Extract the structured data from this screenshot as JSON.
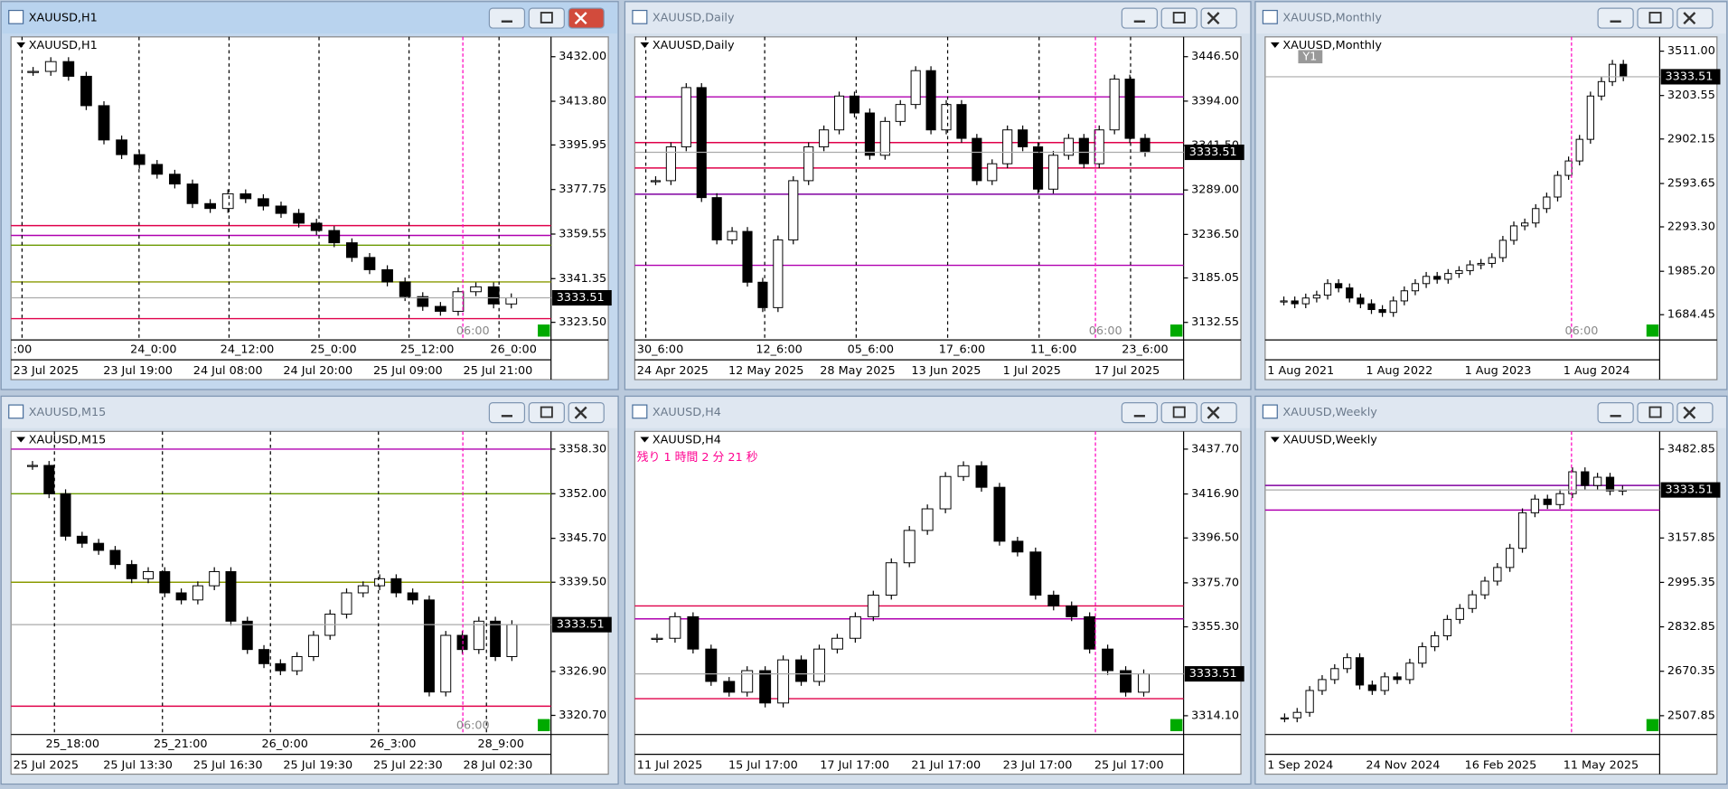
{
  "windows": [
    {
      "title": "XAUUSD,H1",
      "label": "XAUUSD,H1",
      "ylim": [
        3316.3,
        3440.1
      ],
      "yticks": [
        {
          "value": 3432,
          "label": "3432.00"
        },
        {
          "value": 3413.8,
          "label": "3413.80"
        },
        {
          "value": 3395.95,
          "label": "3395.95"
        },
        {
          "value": 3377.75,
          "label": "3377.75"
        },
        {
          "value": 3359.55,
          "label": "3359.55"
        },
        {
          "value": 3341.35,
          "label": "3341.35"
        },
        {
          "value": 3323.5,
          "label": "3323.50"
        }
      ],
      "price": 3333.51,
      "top_labels": [
        ":00",
        "24_0:00",
        "24_12:00",
        "25_0:00",
        "25_12:00",
        "26_0:00"
      ],
      "dates": [
        "23 Jul 2025",
        "23 Jul 19:00",
        "24 Jul 08:00",
        "24 Jul 20:00",
        "25 Jul 09:00",
        "25 Jul 21:00"
      ],
      "ghost": "06:00",
      "closes": [
        3426,
        3430,
        3424,
        3412,
        3398,
        3392,
        3388,
        3384,
        3380,
        3372,
        3370,
        3376,
        3374,
        3371,
        3368,
        3364,
        3361,
        3356,
        3350,
        3345,
        3340,
        3334,
        3330,
        3328,
        3336,
        3338,
        3331,
        3333.51
      ],
      "levels": [
        {
          "value": 3363,
          "color": "#e0004a"
        },
        {
          "value": 3359,
          "color": "#b000b0"
        },
        {
          "value": 3355,
          "color": "#6a9a00"
        },
        {
          "value": 3340,
          "color": "#8a9a00"
        },
        {
          "value": 3325,
          "color": "#e0004a"
        }
      ]
    },
    {
      "title": "XAUUSD,Daily",
      "label": "XAUUSD,Daily",
      "ylim": [
        3111.8,
        3469.9
      ],
      "yticks": [
        {
          "value": 3446.5,
          "label": "3446.50"
        },
        {
          "value": 3394,
          "label": "3394.00"
        },
        {
          "value": 3341.5,
          "label": "3341.50"
        },
        {
          "value": 3289,
          "label": "3289.00"
        },
        {
          "value": 3236.5,
          "label": "3236.50"
        },
        {
          "value": 3185.05,
          "label": "3185.05"
        },
        {
          "value": 3132.55,
          "label": "3132.55"
        }
      ],
      "price": 3333.51,
      "top_labels": [
        "30_6:00",
        "12_6:00",
        "05_6:00",
        "17_6:00",
        "11_6:00",
        "23_6:00"
      ],
      "dates": [
        "24 Apr 2025",
        "12 May 2025",
        "28 May 2025",
        "13 Jun 2025",
        "1 Jul 2025",
        "17 Jul 2025"
      ],
      "ghost": "06:00",
      "closes": [
        3300,
        3340,
        3410,
        3280,
        3230,
        3240,
        3180,
        3150,
        3230,
        3300,
        3340,
        3360,
        3400,
        3380,
        3330,
        3370,
        3390,
        3430,
        3360,
        3390,
        3350,
        3300,
        3320,
        3360,
        3340,
        3290,
        3330,
        3350,
        3320,
        3360,
        3420,
        3350,
        3333.51
      ],
      "levels": [
        {
          "value": 3399,
          "color": "#b000b0"
        },
        {
          "value": 3345,
          "color": "#e0004a"
        },
        {
          "value": 3315,
          "color": "#e0004a"
        },
        {
          "value": 3284,
          "color": "#8000a0"
        },
        {
          "value": 3200,
          "color": "#b000b0"
        }
      ]
    },
    {
      "title": "XAUUSD,Monthly",
      "label": "XAUUSD,Monthly",
      "ylim": [
        1509.4,
        3610
      ],
      "yticks": [
        {
          "value": 3511,
          "label": "3511.00"
        },
        {
          "value": 3203.55,
          "label": "3203.55"
        },
        {
          "value": 2902.15,
          "label": "2902.15"
        },
        {
          "value": 2593.65,
          "label": "2593.65"
        },
        {
          "value": 2293.3,
          "label": "2293.30"
        },
        {
          "value": 1985.2,
          "label": "1985.20"
        },
        {
          "value": 1684.45,
          "label": "1684.45"
        }
      ],
      "price": 3333.51,
      "period_marker": "Y1",
      "top_labels": [],
      "dates": [
        "1 Aug 2021",
        "1 Aug 2022",
        "1 Aug 2023",
        "1 Aug 2024"
      ],
      "ghost": "06:00",
      "closes": [
        1780,
        1760,
        1800,
        1820,
        1900,
        1870,
        1800,
        1760,
        1720,
        1700,
        1780,
        1850,
        1900,
        1950,
        1930,
        1970,
        1990,
        2030,
        2040,
        2080,
        2200,
        2300,
        2320,
        2420,
        2500,
        2650,
        2750,
        2900,
        3200,
        3300,
        3420,
        3333.51
      ],
      "levels": []
    },
    {
      "title": "XAUUSD,M15",
      "label": "XAUUSD,M15",
      "ylim": [
        3318,
        3360.8
      ],
      "yticks": [
        {
          "value": 3358.3,
          "label": "3358.30"
        },
        {
          "value": 3352,
          "label": "3352.00"
        },
        {
          "value": 3345.7,
          "label": "3345.70"
        },
        {
          "value": 3339.5,
          "label": "3339.50"
        },
        {
          "value": 3326.9,
          "label": "3326.90"
        },
        {
          "value": 3320.7,
          "label": "3320.70"
        }
      ],
      "price": 3333.51,
      "top_labels": [
        "25_18:00",
        "25_21:00",
        "26_0:00",
        "26_3:00",
        "28_9:00"
      ],
      "dates": [
        "25 Jul 2025",
        "25 Jul 13:30",
        "25 Jul 16:30",
        "25 Jul 19:30",
        "25 Jul 22:30",
        "28 Jul 02:30"
      ],
      "ghost": "06:00",
      "closes": [
        3356,
        3352,
        3346,
        3345,
        3344,
        3342,
        3340,
        3341,
        3338,
        3337,
        3339,
        3341,
        3334,
        3330,
        3328,
        3327,
        3329,
        3332,
        3335,
        3338,
        3339,
        3340,
        3338,
        3337,
        3324,
        3332,
        3330,
        3334,
        3329,
        3333.51
      ],
      "levels": [
        {
          "value": 3358.3,
          "color": "#b000b0"
        },
        {
          "value": 3352,
          "color": "#6a9a00"
        },
        {
          "value": 3339.5,
          "color": "#8a9a00"
        },
        {
          "value": 3322,
          "color": "#e0004a"
        }
      ]
    },
    {
      "title": "XAUUSD,H4",
      "label": "XAUUSD,H4",
      "ylim": [
        3305.4,
        3445.9
      ],
      "yticks": [
        {
          "value": 3437.7,
          "label": "3437.70"
        },
        {
          "value": 3416.9,
          "label": "3416.90"
        },
        {
          "value": 3396.5,
          "label": "3396.50"
        },
        {
          "value": 3375.7,
          "label": "3375.70"
        },
        {
          "value": 3355.3,
          "label": "3355.30"
        },
        {
          "value": 3314.1,
          "label": "3314.10"
        }
      ],
      "price": 3333.51,
      "countdown": "残り 1 時間 2 分 21 秒",
      "top_labels": [],
      "dates": [
        "11 Jul 2025",
        "15 Jul 17:00",
        "17 Jul 17:00",
        "21 Jul 17:00",
        "23 Jul 17:00",
        "25 Jul 17:00"
      ],
      "closes": [
        3350,
        3360,
        3345,
        3330,
        3325,
        3335,
        3320,
        3340,
        3330,
        3345,
        3350,
        3360,
        3370,
        3385,
        3400,
        3410,
        3425,
        3430,
        3420,
        3395,
        3390,
        3370,
        3365,
        3360,
        3345,
        3335,
        3325,
        3333.51
      ],
      "levels": [
        {
          "value": 3365,
          "color": "#e0004a"
        },
        {
          "value": 3359,
          "color": "#b000b0"
        },
        {
          "value": 3322,
          "color": "#e0004a"
        }
      ]
    },
    {
      "title": "XAUUSD,Weekly",
      "label": "XAUUSD,Weekly",
      "ylim": [
        2439.1,
        3547.6
      ],
      "yticks": [
        {
          "value": 3482.85,
          "label": "3482.85"
        },
        {
          "value": 3157.85,
          "label": "3157.85"
        },
        {
          "value": 2995.35,
          "label": "2995.35"
        },
        {
          "value": 2832.85,
          "label": "2832.85"
        },
        {
          "value": 2670.35,
          "label": "2670.35"
        },
        {
          "value": 2507.85,
          "label": "2507.85"
        }
      ],
      "price": 3333.51,
      "top_labels": [],
      "dates": [
        "1 Sep 2024",
        "24 Nov 2024",
        "16 Feb 2025",
        "11 May 2025"
      ],
      "closes": [
        2500,
        2520,
        2600,
        2640,
        2680,
        2720,
        2620,
        2600,
        2650,
        2640,
        2700,
        2760,
        2800,
        2860,
        2900,
        2950,
        3000,
        3050,
        3120,
        3250,
        3300,
        3280,
        3320,
        3400,
        3350,
        3380,
        3330,
        3333.51
      ],
      "levels": [
        {
          "value": 3350,
          "color": "#8000a0"
        },
        {
          "value": 3260,
          "color": "#b000b0"
        }
      ]
    }
  ]
}
